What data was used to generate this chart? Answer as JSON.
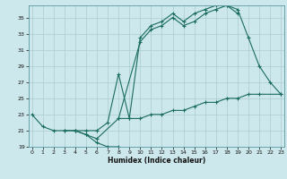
{
  "xlabel": "Humidex (Indice chaleur)",
  "bg_color": "#cce8ec",
  "grid_color": "#aaccd0",
  "line_color": "#1a6b60",
  "lines": [
    {
      "x": [
        0,
        1,
        2,
        3,
        4,
        5,
        6,
        7,
        8
      ],
      "y": [
        23,
        21.5,
        21,
        21,
        21,
        20.5,
        19.5,
        19,
        19
      ]
    },
    {
      "x": [
        8,
        9,
        10,
        11,
        12,
        13,
        14,
        15,
        16,
        17,
        18,
        19,
        20,
        21,
        23
      ],
      "y": [
        22.5,
        22.5,
        22.5,
        23,
        23,
        23.5,
        23.5,
        24,
        24.5,
        24.5,
        25,
        25,
        25.5,
        25.5,
        25.5
      ]
    },
    {
      "x": [
        4,
        5,
        6,
        7,
        8,
        9,
        10,
        11,
        12,
        13,
        14,
        15,
        16,
        17,
        18,
        19
      ],
      "y": [
        21,
        21,
        21,
        22,
        28,
        22.5,
        32.5,
        34,
        34.5,
        35.5,
        34.5,
        35.5,
        36,
        36.5,
        36.5,
        35.5
      ]
    },
    {
      "x": [
        3,
        4,
        5,
        6,
        8,
        10,
        11,
        12,
        13,
        14,
        15,
        16,
        17,
        18,
        19,
        20,
        21,
        22,
        23
      ],
      "y": [
        21,
        21,
        20.5,
        20,
        22.5,
        32,
        33.5,
        34,
        35,
        34,
        34.5,
        35.5,
        36,
        36.5,
        36,
        32.5,
        29,
        27,
        25.5
      ]
    }
  ],
  "ylim": [
    19,
    36.5
  ],
  "xlim": [
    -0.3,
    23.3
  ],
  "yticks": [
    19,
    21,
    23,
    25,
    27,
    29,
    31,
    33,
    35
  ],
  "xticks": [
    0,
    1,
    2,
    3,
    4,
    5,
    6,
    7,
    8,
    9,
    10,
    11,
    12,
    13,
    14,
    15,
    16,
    17,
    18,
    19,
    20,
    21,
    22,
    23
  ],
  "marker": "+",
  "markersize": 3,
  "linewidth": 0.8
}
